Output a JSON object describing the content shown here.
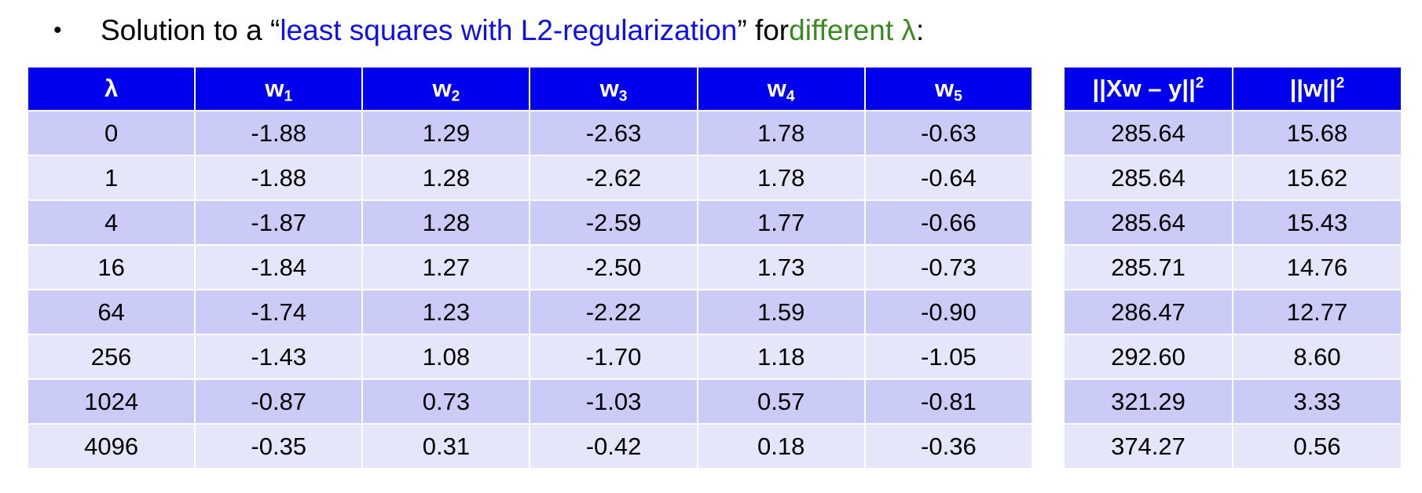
{
  "header": {
    "bullet": "•",
    "text_before": "Solution to a “",
    "highlight_blue": "least squares with L2-regularization",
    "text_middle": "” for ",
    "highlight_green": "different λ",
    "text_after": ":"
  },
  "coef_table": {
    "columns": [
      {
        "base": "λ",
        "sub": ""
      },
      {
        "base": "w",
        "sub": "1"
      },
      {
        "base": "w",
        "sub": "2"
      },
      {
        "base": "w",
        "sub": "3"
      },
      {
        "base": "w",
        "sub": "4"
      },
      {
        "base": "w",
        "sub": "5"
      }
    ],
    "rows": [
      [
        "0",
        "-1.88",
        "1.29",
        "-2.63",
        "1.78",
        "-0.63"
      ],
      [
        "1",
        "-1.88",
        "1.28",
        "-2.62",
        "1.78",
        "-0.64"
      ],
      [
        "4",
        "-1.87",
        "1.28",
        "-2.59",
        "1.77",
        "-0.66"
      ],
      [
        "16",
        "-1.84",
        "1.27",
        "-2.50",
        "1.73",
        "-0.73"
      ],
      [
        "64",
        "-1.74",
        "1.23",
        "-2.22",
        "1.59",
        "-0.90"
      ],
      [
        "256",
        "-1.43",
        "1.08",
        "-1.70",
        "1.18",
        "-1.05"
      ],
      [
        "1024",
        "-0.87",
        "0.73",
        "-1.03",
        "0.57",
        "-0.81"
      ],
      [
        "4096",
        "-0.35",
        "0.31",
        "-0.42",
        "0.18",
        "-0.36"
      ]
    ]
  },
  "metric_table": {
    "columns": [
      {
        "base": "||Xw – y||",
        "sup": "2"
      },
      {
        "base": "||w||",
        "sup": "2"
      }
    ],
    "rows": [
      [
        "285.64",
        "15.68"
      ],
      [
        "285.64",
        "15.62"
      ],
      [
        "285.64",
        "15.43"
      ],
      [
        "285.71",
        "14.76"
      ],
      [
        "286.47",
        "12.77"
      ],
      [
        "292.60",
        "8.60"
      ],
      [
        "321.29",
        "3.33"
      ],
      [
        "374.27",
        "0.56"
      ]
    ]
  },
  "colors": {
    "header_bg": "#0000ee",
    "row_odd": "#cbcbf7",
    "row_even": "#e6e6fb",
    "blue_text": "#1010e0",
    "green_text": "#3a8a22"
  }
}
